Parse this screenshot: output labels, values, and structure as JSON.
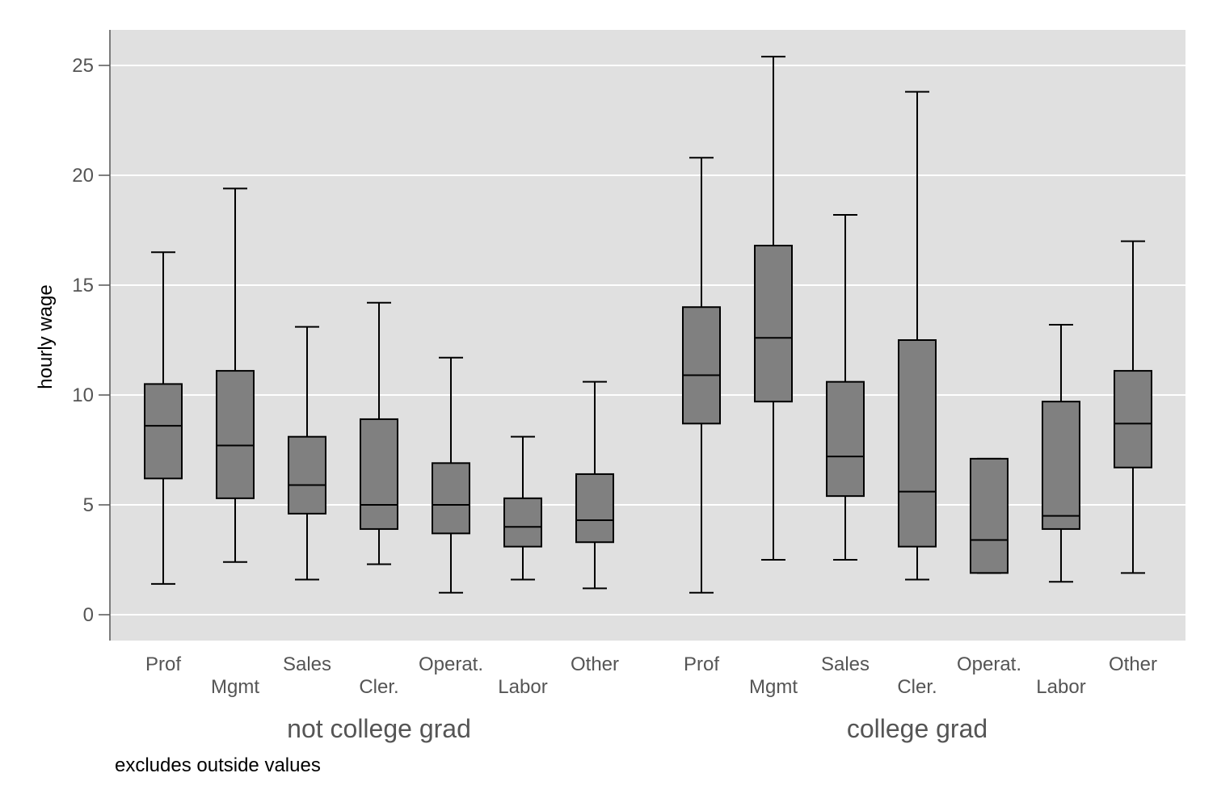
{
  "chart_data": {
    "type": "box",
    "ylabel": "hourly wage",
    "note": "excludes outside values",
    "ylim": [
      0,
      26
    ],
    "y_ticks": [
      0,
      5,
      10,
      15,
      20,
      25
    ],
    "grid": true,
    "groups": [
      {
        "label": "not college grad",
        "boxes": [
          {
            "category": "Prof",
            "min": 1.4,
            "q1": 6.2,
            "median": 8.6,
            "q3": 10.5,
            "max": 16.5
          },
          {
            "category": "Mgmt",
            "min": 2.4,
            "q1": 5.3,
            "median": 7.7,
            "q3": 11.1,
            "max": 19.4
          },
          {
            "category": "Sales",
            "min": 1.6,
            "q1": 4.6,
            "median": 5.9,
            "q3": 8.1,
            "max": 13.1
          },
          {
            "category": "Cler.",
            "min": 2.3,
            "q1": 3.9,
            "median": 5.0,
            "q3": 8.9,
            "max": 14.2
          },
          {
            "category": "Operat.",
            "min": 1.0,
            "q1": 3.7,
            "median": 5.0,
            "q3": 6.9,
            "max": 11.7
          },
          {
            "category": "Labor",
            "min": 1.6,
            "q1": 3.1,
            "median": 4.0,
            "q3": 5.3,
            "max": 8.1
          },
          {
            "category": "Other",
            "min": 1.2,
            "q1": 3.3,
            "median": 4.3,
            "q3": 6.4,
            "max": 10.6
          }
        ]
      },
      {
        "label": "college grad",
        "boxes": [
          {
            "category": "Prof",
            "min": 1.0,
            "q1": 8.7,
            "median": 10.9,
            "q3": 14.0,
            "max": 20.8
          },
          {
            "category": "Mgmt",
            "min": 2.5,
            "q1": 9.7,
            "median": 12.6,
            "q3": 16.8,
            "max": 25.4
          },
          {
            "category": "Sales",
            "min": 2.5,
            "q1": 5.4,
            "median": 7.2,
            "q3": 10.6,
            "max": 18.2
          },
          {
            "category": "Cler.",
            "min": 1.6,
            "q1": 3.1,
            "median": 5.6,
            "q3": 12.5,
            "max": 23.8
          },
          {
            "category": "Operat.",
            "min": 1.9,
            "q1": 1.9,
            "median": 3.4,
            "q3": 7.1,
            "max": 7.1
          },
          {
            "category": "Labor",
            "min": 1.5,
            "q1": 3.9,
            "median": 4.5,
            "q3": 9.7,
            "max": 13.2
          },
          {
            "category": "Other",
            "min": 1.9,
            "q1": 6.7,
            "median": 8.7,
            "q3": 11.1,
            "max": 17.0
          }
        ]
      }
    ]
  }
}
